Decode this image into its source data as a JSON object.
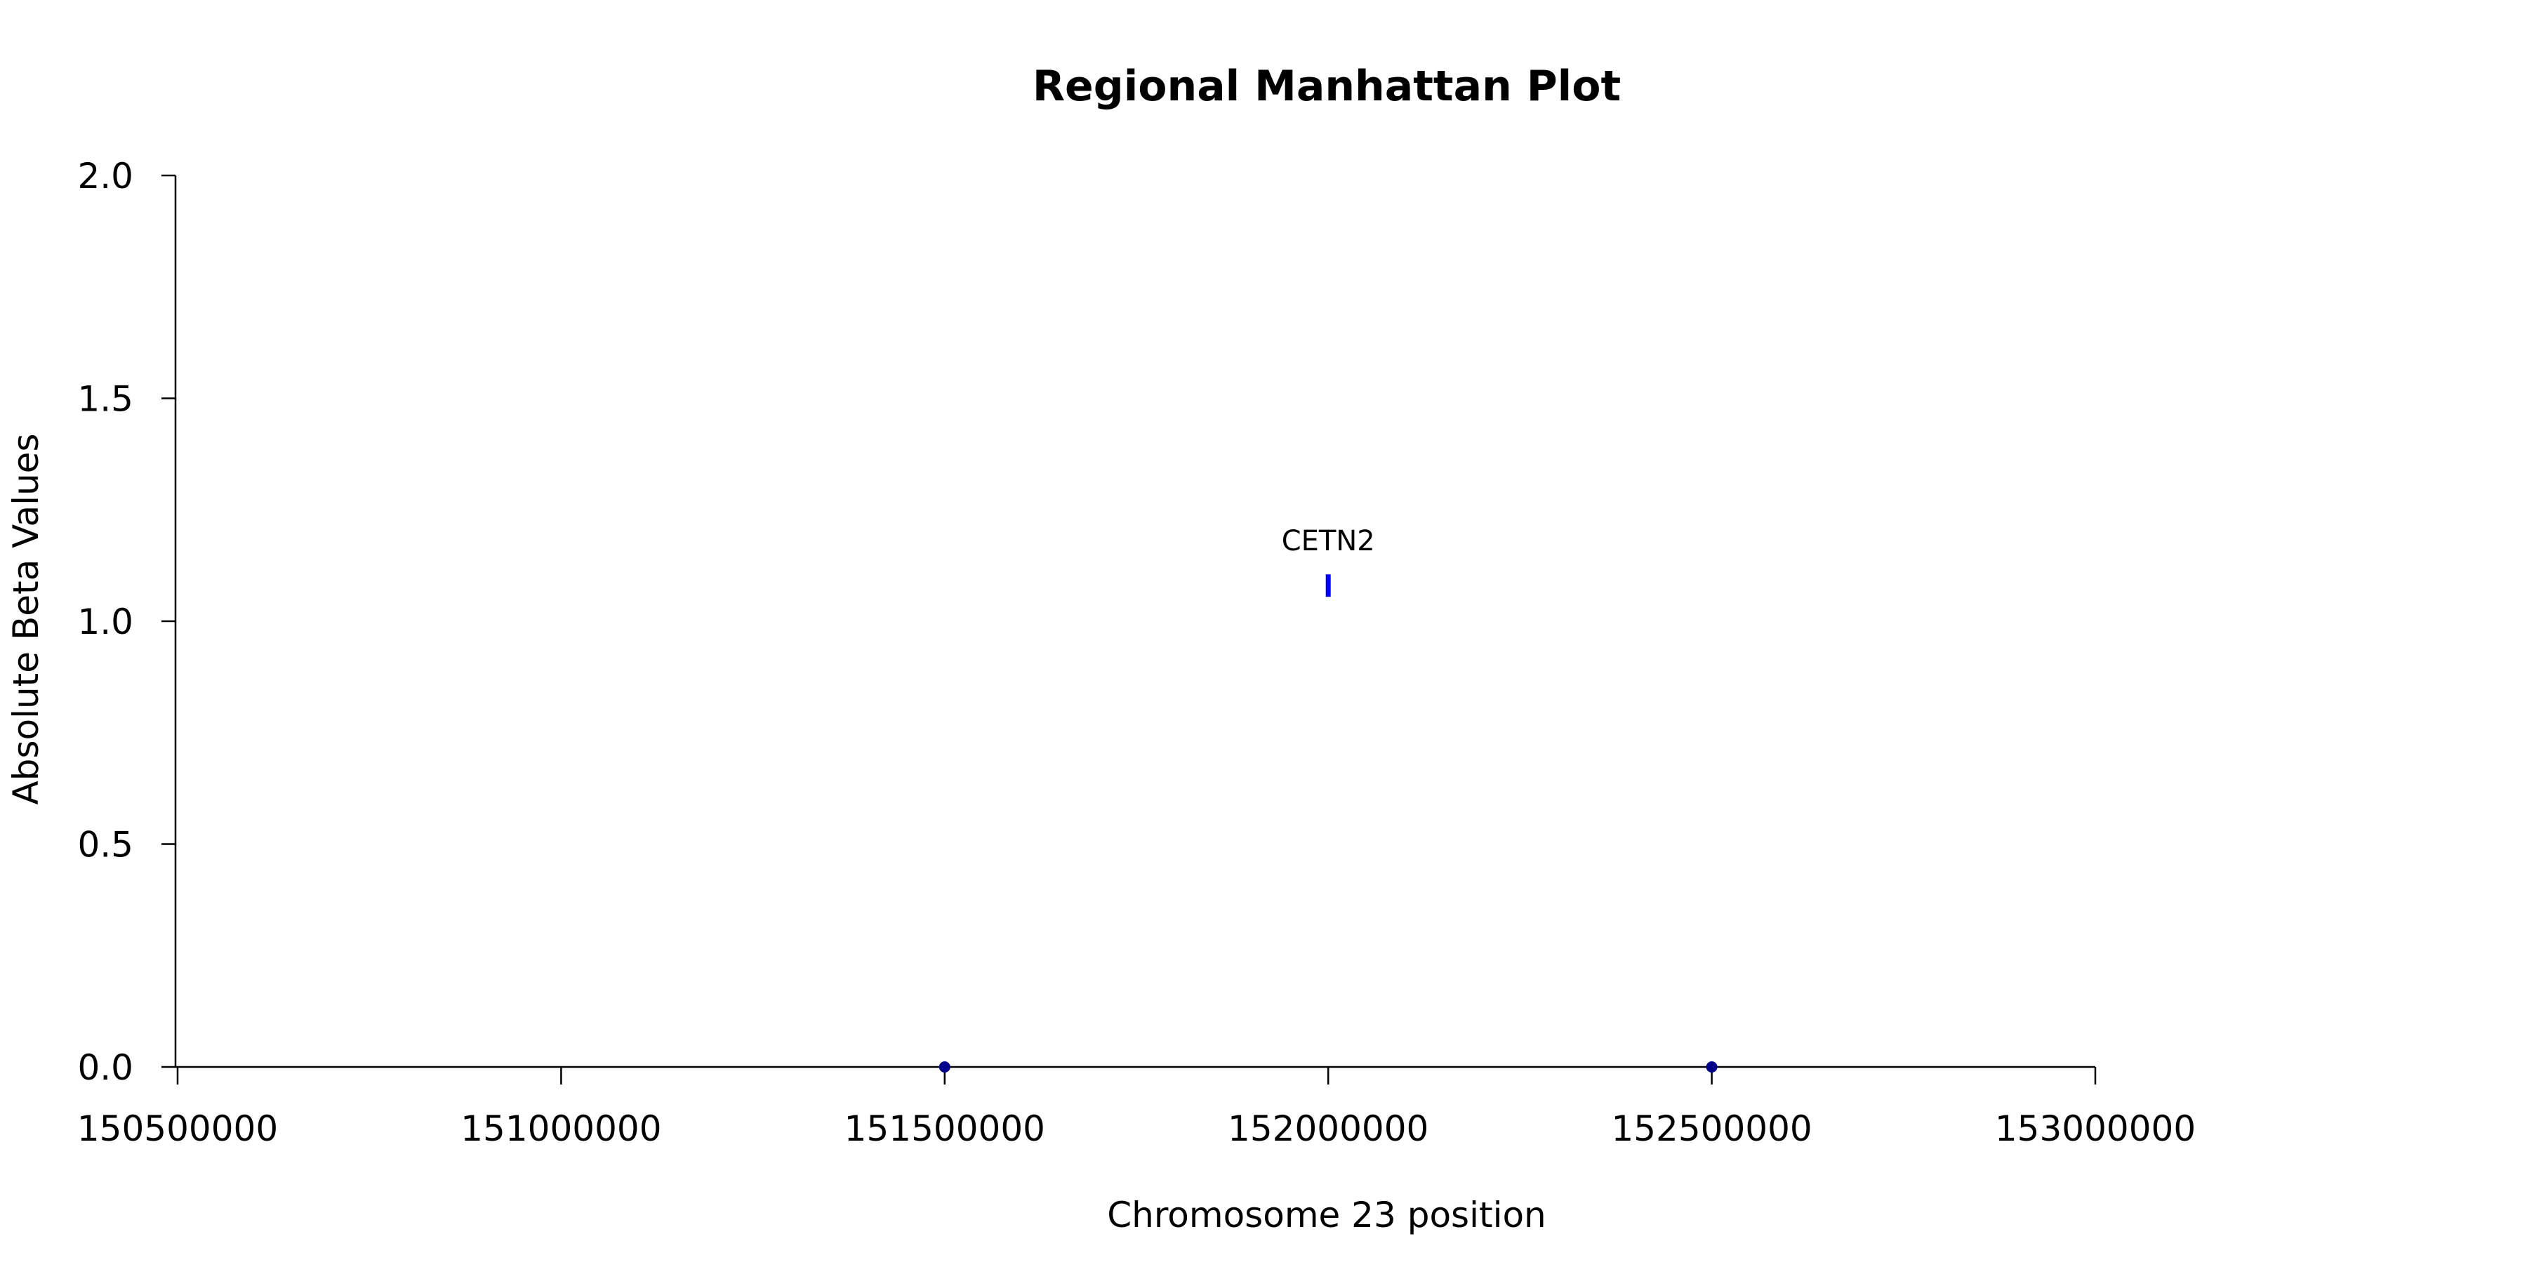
{
  "chart_data": {
    "type": "scatter",
    "title": "Regional Manhattan Plot",
    "xlabel": "Chromosome 23 position",
    "ylabel": "Absolute Beta Values",
    "xlim": [
      150500000,
      153000000
    ],
    "ylim": [
      0,
      2
    ],
    "x_ticks": [
      150500000,
      151000000,
      151500000,
      152000000,
      152500000,
      153000000
    ],
    "x_tick_labels": [
      "150500000",
      "151000000",
      "151500000",
      "152000000",
      "152500000",
      "153000000"
    ],
    "y_ticks": [
      0,
      0.5,
      1,
      1.5,
      2
    ],
    "y_tick_labels": [
      "0.0",
      "0.5",
      "1.0",
      "1.5",
      "2.0"
    ],
    "grid": false,
    "points": [
      {
        "x": 151500000,
        "y": 0,
        "color": "#00008b",
        "marker": "dot"
      },
      {
        "x": 152500000,
        "y": 0,
        "color": "#00008b",
        "marker": "dot"
      }
    ],
    "highlighted": [
      {
        "x": 152000000,
        "y": 1.08,
        "color": "#0000ff",
        "marker": "bar",
        "label": "CETN2"
      }
    ]
  }
}
